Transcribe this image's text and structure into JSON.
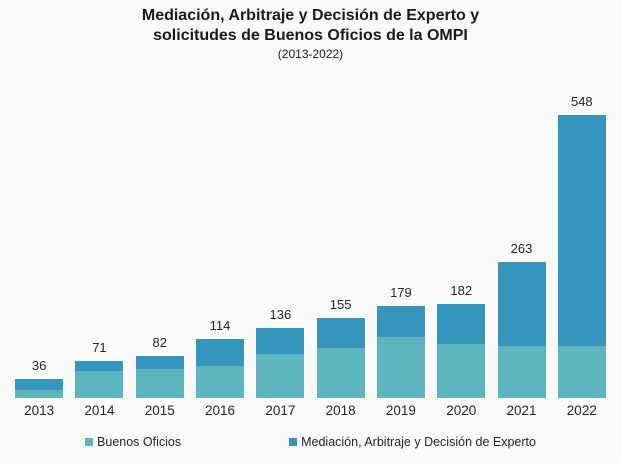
{
  "title": {
    "line1": "Mediación, Arbitraje y Decisión de Experto y",
    "line2": "solicitudes de Buenos Oficios de la OMPI",
    "subtitle": "(2013-2022)"
  },
  "colors": {
    "background": "#fafafa",
    "buenos_oficios": "#5CB5BF",
    "mediacion": "#3595BC",
    "text": "#262626"
  },
  "chart_data": {
    "type": "bar",
    "stacked": true,
    "title": "Mediación, Arbitraje y Decisión de Experto y solicitudes de Buenos Oficios de la OMPI",
    "subtitle": "(2013-2022)",
    "categories": [
      "2013",
      "2014",
      "2015",
      "2016",
      "2017",
      "2018",
      "2019",
      "2020",
      "2021",
      "2022"
    ],
    "series": [
      {
        "name": "Buenos Oficios",
        "color": "#5CB5BF",
        "values": [
          16,
          53,
          57,
          62,
          86,
          97,
          118,
          105,
          100,
          100
        ]
      },
      {
        "name": "Mediación, Arbitraje y Decisión de Experto",
        "color": "#3595BC",
        "values": [
          20,
          18,
          25,
          52,
          50,
          58,
          61,
          77,
          163,
          448
        ]
      }
    ],
    "totals": [
      36,
      71,
      82,
      114,
      136,
      155,
      179,
      182,
      263,
      548
    ],
    "value_labels": "totals shown above each bar",
    "xlabel": "",
    "ylabel": "",
    "ylim": [
      0,
      548
    ],
    "grid": false,
    "y_axis_visible": false,
    "legend_position": "bottom"
  },
  "legend": {
    "items": [
      {
        "label": "Buenos Oficios",
        "color": "#5CB5BF"
      },
      {
        "label": "Mediación, Arbitraje y Decisión de Experto",
        "color": "#3595BC"
      }
    ]
  }
}
